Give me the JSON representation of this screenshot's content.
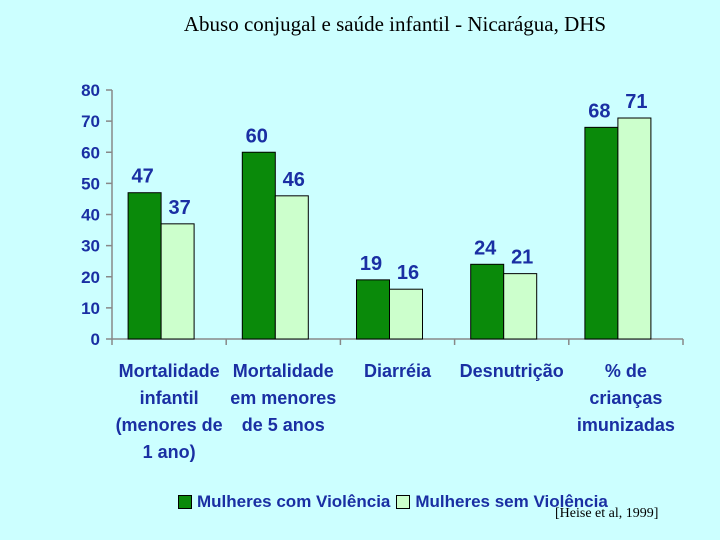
{
  "title": "Abuso conjugal e saúde infantil - Nicarágua, DHS",
  "source": "[Heise et al,  1999]",
  "colors": {
    "background": "#ccffff",
    "series_1": "#0a8a0a",
    "series_2": "#ccffcc",
    "label_text": "#1a2fa3"
  },
  "chart_data": {
    "type": "bar",
    "categories": [
      "Mortalidade\ninfantil\n(menores de\n1 ano)",
      "Mortalidade\nem menores\nde 5 anos",
      "Diarréia",
      "Desnutrição",
      "% de\ncrianças\nimunizadas"
    ],
    "series": [
      {
        "name": "Mulheres com Violência",
        "values": [
          47,
          60,
          19,
          24,
          68
        ]
      },
      {
        "name": "Mulheres sem Violência",
        "values": [
          37,
          46,
          16,
          21,
          71
        ]
      }
    ],
    "y_ticks": [
      "0",
      "10",
      "20",
      "30",
      "40",
      "50",
      "60",
      "70",
      "80"
    ],
    "ylim": [
      0,
      80
    ],
    "grid": false,
    "legend_position": "bottom",
    "data_labels": true
  }
}
